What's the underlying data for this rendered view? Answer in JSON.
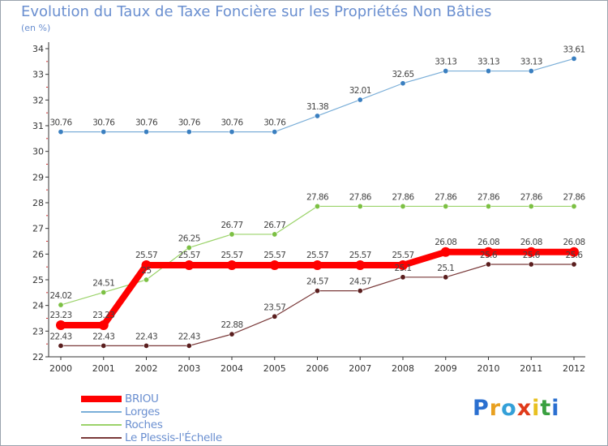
{
  "chart_data": {
    "type": "line",
    "title": "Evolution du Taux de Taxe Foncière sur les Propriétés Non Bâties",
    "ylabel": "(en %)",
    "xlabel": "",
    "categories": [
      "2000",
      "2001",
      "2002",
      "2003",
      "2004",
      "2005",
      "2006",
      "2007",
      "2008",
      "2009",
      "2010",
      "2011",
      "2012"
    ],
    "ylim": [
      22,
      34
    ],
    "yticks": [
      22,
      23,
      24,
      25,
      26,
      27,
      28,
      29,
      30,
      31,
      32,
      33,
      34
    ],
    "grid": false,
    "legend_position": "bottom-left",
    "series": [
      {
        "name": "Lorges",
        "color": "#7aaed8",
        "marker": "#3a7fc0",
        "values": [
          30.76,
          30.76,
          30.76,
          30.76,
          30.76,
          30.76,
          31.38,
          32.01,
          32.65,
          33.13,
          33.13,
          33.13,
          33.61
        ],
        "labels": [
          "30.76",
          "30.76",
          "30.76",
          "30.76",
          "30.76",
          "30.76",
          "31.38",
          "32.01",
          "32.65",
          "33.13",
          "33.13",
          "33.13",
          "33.61"
        ]
      },
      {
        "name": "Roches",
        "color": "#9bd36a",
        "marker": "#7cc043",
        "values": [
          24.02,
          24.51,
          25.0,
          26.25,
          26.77,
          26.77,
          27.86,
          27.86,
          27.86,
          27.86,
          27.86,
          27.86,
          27.86
        ],
        "labels": [
          "24.02",
          "24.51",
          "25",
          "26.25",
          "26.77",
          "26.77",
          "27.86",
          "27.86",
          "27.86",
          "27.86",
          "27.86",
          "27.86",
          "27.86"
        ]
      },
      {
        "name": "Le Plessis-l'Échelle",
        "color": "#7a3a3a",
        "marker": "#5a1e1e",
        "values": [
          22.43,
          22.43,
          22.43,
          22.43,
          22.88,
          23.57,
          24.57,
          24.57,
          25.1,
          25.1,
          25.6,
          25.6,
          25.6
        ],
        "labels": [
          "22.43",
          "22.43",
          "22.43",
          "22.43",
          "22.88",
          "23.57",
          "24.57",
          "24.57",
          "25.1",
          "25.1",
          "25.6",
          "25.6",
          "25.6"
        ]
      },
      {
        "name": "BRIOU",
        "color": "#ff0000",
        "marker": "#ff0000",
        "values": [
          23.23,
          23.23,
          25.57,
          25.57,
          25.57,
          25.57,
          25.57,
          25.57,
          25.57,
          26.08,
          26.08,
          26.08,
          26.08
        ],
        "labels": [
          "23.23",
          "23.23",
          "25.57",
          "25.57",
          "25.57",
          "25.57",
          "25.57",
          "25.57",
          "25.57",
          "26.08",
          "26.08",
          "26.08",
          "26.08"
        ]
      }
    ],
    "legend": [
      "BRIOU",
      "Lorges",
      "Roches",
      "Le Plessis-l'Échelle"
    ]
  },
  "brand": {
    "letters": [
      "P",
      "r",
      "o",
      "x",
      "i",
      "t",
      "i"
    ],
    "colors": [
      "#2a6fd0",
      "#e8a020",
      "#34a0d8",
      "#e03a1a",
      "#e8c020",
      "#3aa040",
      "#2a6fd0"
    ]
  }
}
